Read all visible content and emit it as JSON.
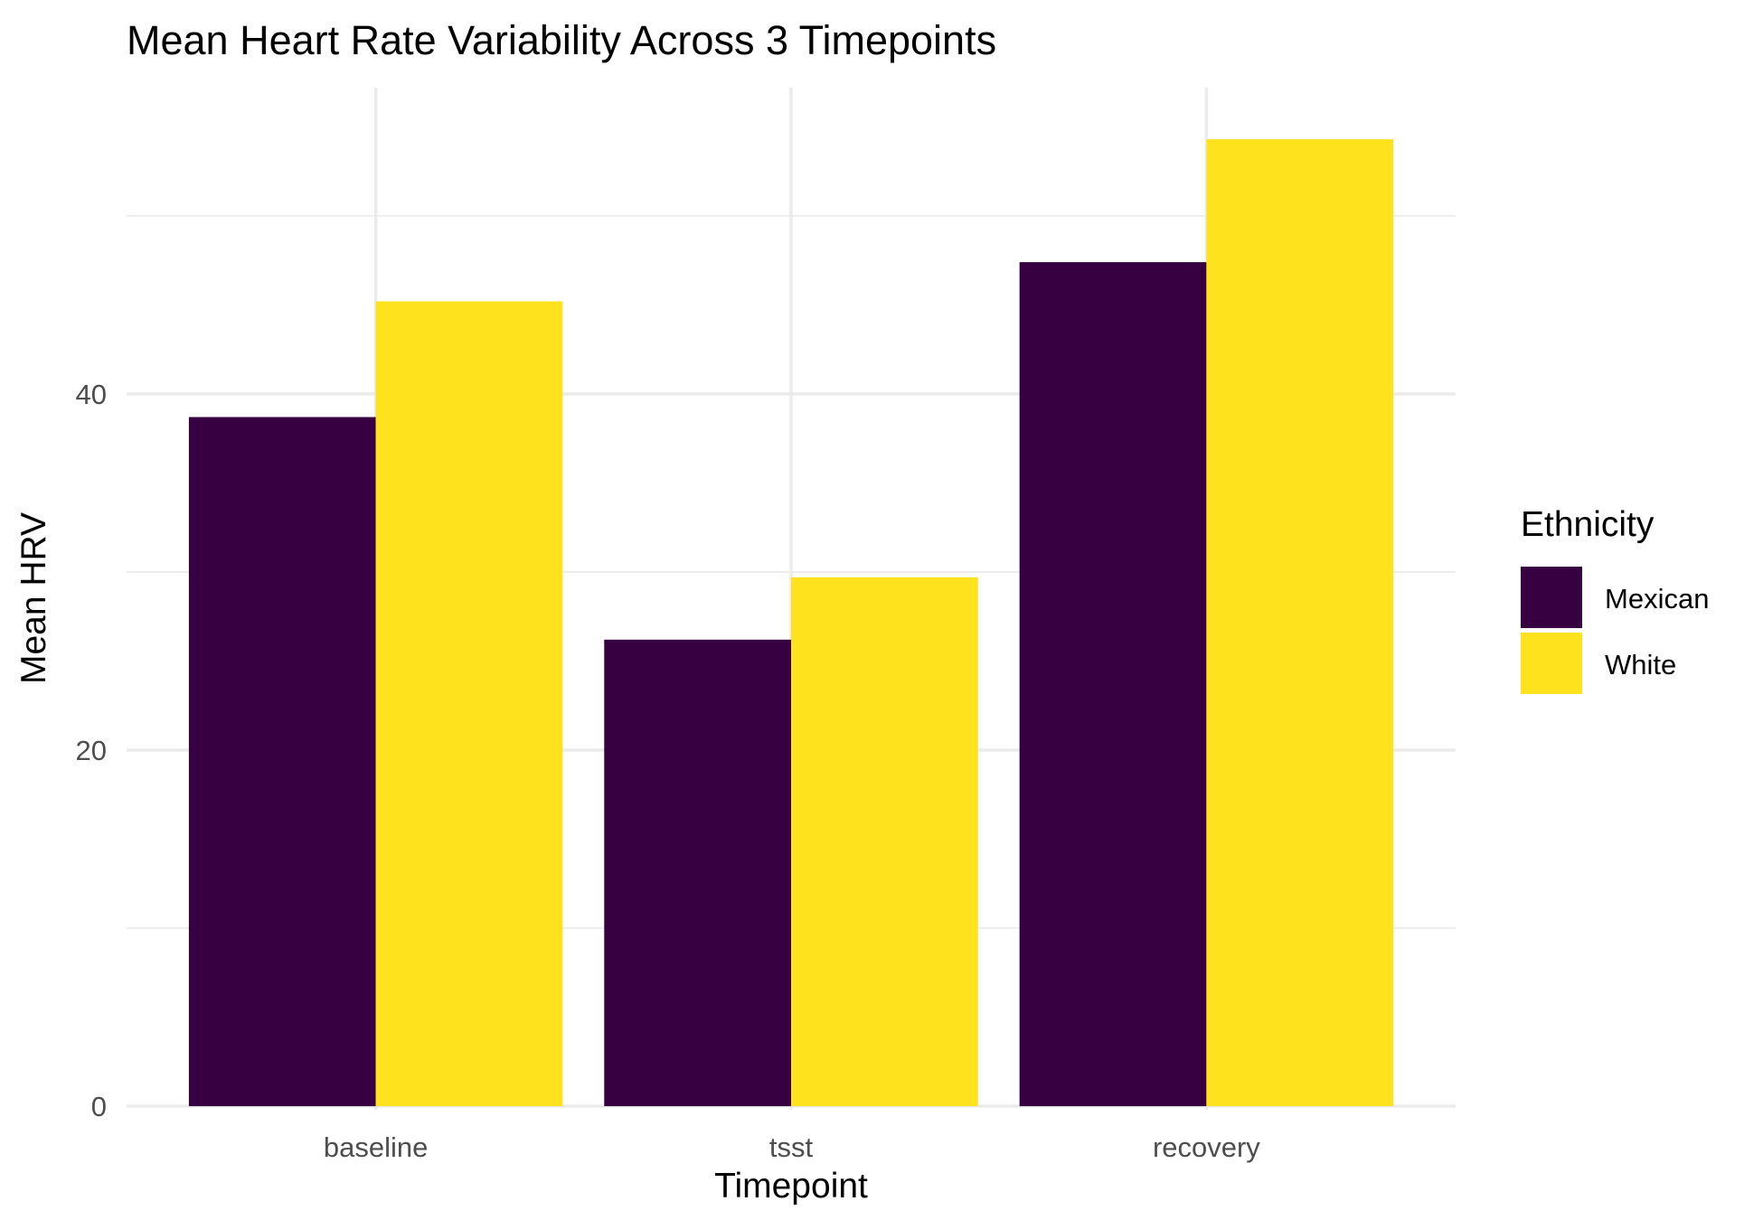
{
  "chart_data": {
    "type": "bar",
    "title": "Mean Heart Rate Variability Across 3 Timepoints",
    "xlabel": "Timepoint",
    "ylabel": "Mean HRV",
    "categories": [
      "baseline",
      "tsst",
      "recovery"
    ],
    "series": [
      {
        "name": "Mexican",
        "color": "#370040",
        "values": [
          38.7,
          26.2,
          47.4
        ]
      },
      {
        "name": "White",
        "color": "#FDE21D",
        "values": [
          45.2,
          29.7,
          54.3
        ]
      }
    ],
    "ylim": [
      -0.2,
      57.2
    ],
    "y_major_ticks": [
      0,
      20,
      40
    ],
    "y_minor_ticks": [
      10,
      30,
      50
    ],
    "grid": true,
    "legend": {
      "title": "Ethnicity",
      "position": "right"
    }
  }
}
